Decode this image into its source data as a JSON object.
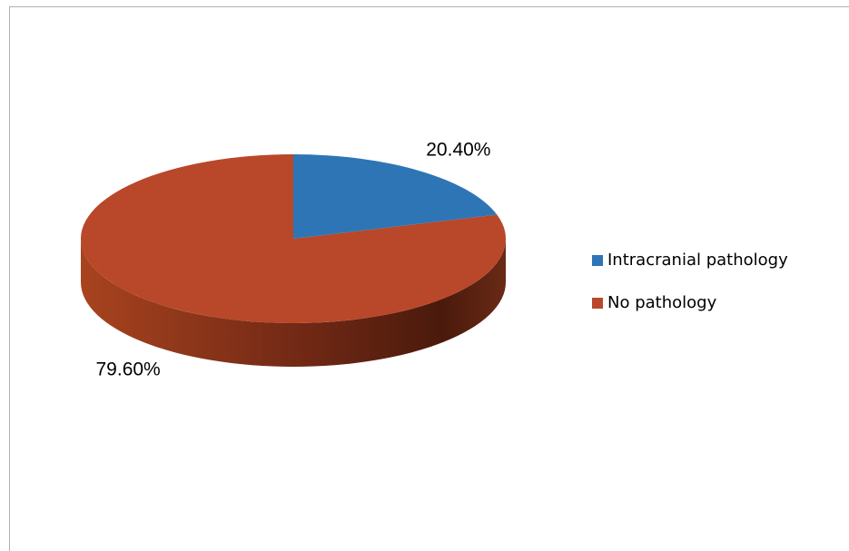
{
  "chart_data": {
    "type": "pie",
    "categories": [
      "Intracranial pathology",
      "No pathology"
    ],
    "values": [
      20.4,
      79.6
    ],
    "value_labels": [
      "20.40%",
      "79.60%"
    ],
    "colors": [
      "#2e75b6",
      "#b9472a"
    ],
    "legend": "right"
  }
}
